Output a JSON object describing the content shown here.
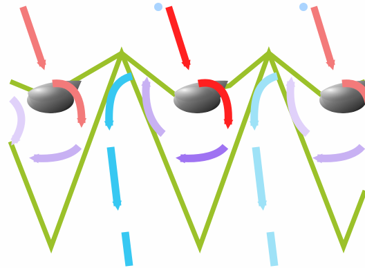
{
  "diagram": {
    "colors": {
      "background": "#fefefe",
      "zigzag": "#9bc12a",
      "zigzag_dark": "#8fb126",
      "red": "#ff2020",
      "red_faded": "#f37a7a",
      "cyan": "#37c8f2",
      "cyan_faded": "#9ee2f7",
      "purple": "#9f73f2",
      "purple_faded": "#c8b1f3",
      "purple_light": "#e0d1fa",
      "dark": "#111111"
    },
    "icons": {
      "zigzag": "zigzag-line",
      "incoming_arrow": "incoming-arrow-icon",
      "curved_arrow": "curved-arrow-icon",
      "dashed_arrow": "dashed-down-arrow-icon",
      "droplet": "dark-droplet-icon"
    }
  }
}
